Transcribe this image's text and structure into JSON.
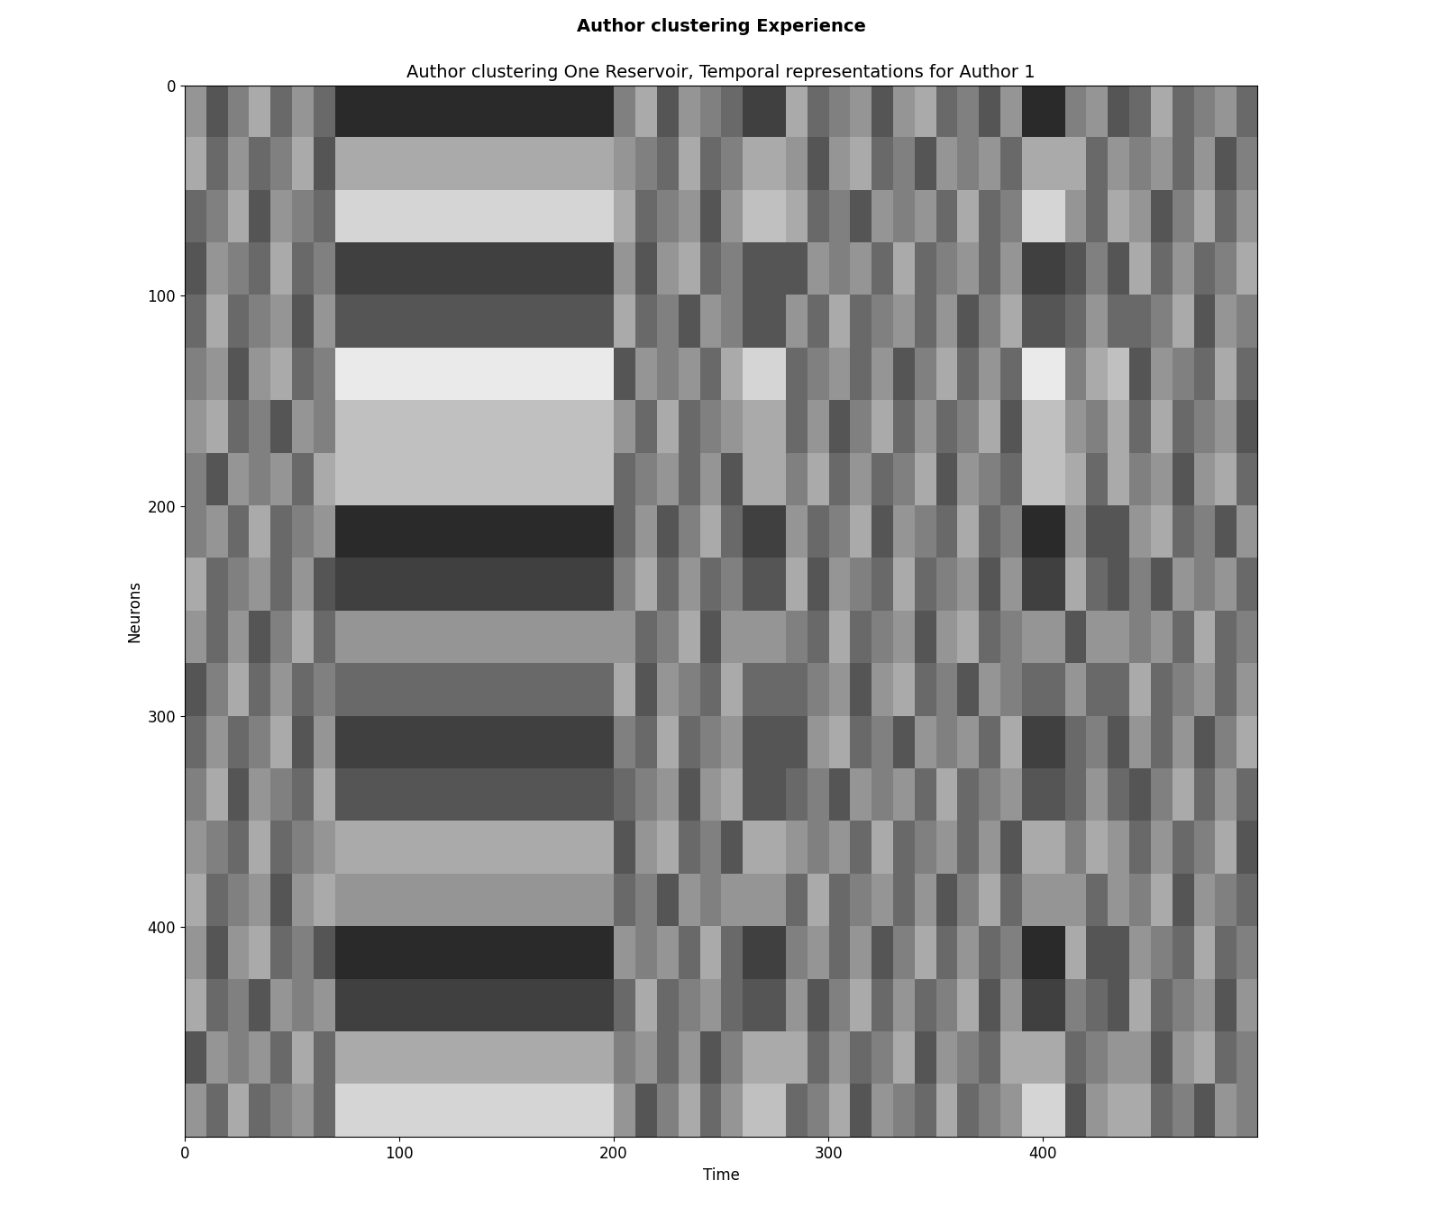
{
  "chart_data": {
    "type": "heatmap",
    "title": "Author clustering Experience",
    "subtitle": "Author clustering One Reservoir, Temporal representations for Author 1",
    "x_label": "Time",
    "y_label": "Neurons",
    "xlim": [
      0,
      500
    ],
    "ylim": [
      500,
      0
    ],
    "xticks": [
      0,
      100,
      200,
      300,
      400
    ],
    "yticks": [
      0,
      100,
      200,
      300,
      400
    ],
    "color": "gray",
    "cell_range": [
      -0.6,
      0.6
    ],
    "cells": [
      [
        0.1,
        -0.2,
        0.0,
        0.2,
        -0.1,
        0.1,
        -0.1,
        -0.4,
        -0.4,
        -0.4,
        -0.4,
        -0.4,
        -0.4,
        -0.4,
        -0.4,
        -0.4,
        -0.4,
        -0.4,
        -0.4,
        -0.4,
        0.0,
        0.2,
        -0.2,
        0.1,
        0.0,
        -0.1,
        -0.3,
        -0.3,
        0.2,
        -0.1,
        0.0,
        0.1,
        -0.2,
        0.1,
        0.2,
        -0.1,
        0.0,
        -0.2,
        0.1,
        -0.4,
        -0.4,
        0.0,
        0.1,
        -0.2,
        -0.1,
        0.2,
        -0.1,
        0.0,
        0.1,
        -0.1
      ],
      [
        0.2,
        -0.1,
        0.1,
        -0.1,
        0.0,
        0.2,
        -0.2,
        0.2,
        0.2,
        0.2,
        0.2,
        0.2,
        0.2,
        0.2,
        0.2,
        0.2,
        0.2,
        0.2,
        0.2,
        0.2,
        0.1,
        0.0,
        -0.1,
        0.2,
        -0.1,
        0.0,
        0.2,
        0.2,
        0.1,
        -0.2,
        0.1,
        0.2,
        -0.1,
        0.0,
        -0.2,
        0.1,
        0.0,
        0.1,
        -0.1,
        0.2,
        0.2,
        0.2,
        -0.1,
        0.1,
        0.0,
        0.1,
        -0.1,
        0.1,
        -0.2,
        0.0
      ],
      [
        -0.1,
        0.0,
        0.2,
        -0.2,
        0.1,
        0.0,
        -0.1,
        0.4,
        0.4,
        0.4,
        0.4,
        0.4,
        0.4,
        0.4,
        0.4,
        0.4,
        0.4,
        0.4,
        0.4,
        0.4,
        0.2,
        -0.1,
        0.0,
        0.1,
        -0.2,
        0.1,
        0.3,
        0.3,
        0.2,
        -0.1,
        0.0,
        -0.2,
        0.1,
        0.0,
        0.1,
        -0.1,
        0.2,
        -0.1,
        0.0,
        0.4,
        0.4,
        0.1,
        -0.1,
        0.2,
        0.1,
        -0.2,
        0.0,
        0.2,
        -0.1,
        0.1
      ],
      [
        -0.2,
        0.1,
        0.0,
        -0.1,
        0.2,
        -0.1,
        0.0,
        -0.3,
        -0.3,
        -0.3,
        -0.3,
        -0.3,
        -0.3,
        -0.3,
        -0.3,
        -0.3,
        -0.3,
        -0.3,
        -0.3,
        -0.3,
        0.1,
        -0.2,
        0.1,
        0.2,
        -0.1,
        0.0,
        -0.2,
        -0.2,
        -0.2,
        0.1,
        0.0,
        0.1,
        -0.1,
        0.2,
        -0.1,
        0.0,
        0.1,
        -0.1,
        0.1,
        -0.3,
        -0.3,
        -0.2,
        0.0,
        -0.2,
        0.2,
        -0.1,
        0.1,
        -0.1,
        0.0,
        0.2
      ],
      [
        -0.1,
        0.2,
        -0.1,
        0.0,
        0.1,
        -0.2,
        0.1,
        -0.2,
        -0.2,
        -0.2,
        -0.2,
        -0.2,
        -0.2,
        -0.2,
        -0.2,
        -0.2,
        -0.2,
        -0.2,
        -0.2,
        -0.2,
        0.2,
        -0.1,
        0.0,
        -0.2,
        0.1,
        0.0,
        -0.2,
        -0.2,
        0.1,
        -0.1,
        0.2,
        -0.1,
        0.0,
        0.1,
        -0.1,
        0.1,
        -0.2,
        0.0,
        0.2,
        -0.2,
        -0.2,
        -0.1,
        0.1,
        -0.1,
        -0.1,
        0.0,
        0.2,
        -0.2,
        0.1,
        0.0
      ],
      [
        0.0,
        0.1,
        -0.2,
        0.1,
        0.2,
        -0.1,
        0.0,
        0.5,
        0.5,
        0.5,
        0.5,
        0.5,
        0.5,
        0.5,
        0.5,
        0.5,
        0.5,
        0.5,
        0.5,
        0.5,
        -0.2,
        0.1,
        0.0,
        0.1,
        -0.1,
        0.2,
        0.4,
        0.4,
        -0.1,
        0.0,
        0.1,
        -0.1,
        0.1,
        -0.2,
        0.0,
        0.2,
        -0.1,
        0.1,
        -0.1,
        0.5,
        0.5,
        0.0,
        0.2,
        0.3,
        -0.2,
        0.1,
        0.0,
        -0.1,
        0.2,
        -0.1
      ],
      [
        0.1,
        0.2,
        -0.1,
        0.0,
        -0.2,
        0.1,
        0.0,
        0.3,
        0.3,
        0.3,
        0.3,
        0.3,
        0.3,
        0.3,
        0.3,
        0.3,
        0.3,
        0.3,
        0.3,
        0.3,
        0.1,
        -0.1,
        0.2,
        -0.1,
        0.0,
        0.1,
        0.2,
        0.2,
        -0.1,
        0.1,
        -0.2,
        0.0,
        0.2,
        -0.1,
        0.1,
        -0.1,
        0.0,
        0.2,
        -0.2,
        0.3,
        0.3,
        0.1,
        0.0,
        0.2,
        -0.1,
        0.2,
        -0.1,
        0.0,
        0.1,
        -0.2
      ],
      [
        0.0,
        -0.2,
        0.1,
        0.0,
        0.1,
        -0.1,
        0.2,
        0.3,
        0.3,
        0.3,
        0.3,
        0.3,
        0.3,
        0.3,
        0.3,
        0.3,
        0.3,
        0.3,
        0.3,
        0.3,
        -0.1,
        0.0,
        0.1,
        -0.1,
        0.1,
        -0.2,
        0.2,
        0.2,
        0.0,
        0.2,
        -0.1,
        0.1,
        -0.1,
        0.0,
        0.2,
        -0.2,
        0.1,
        0.0,
        -0.1,
        0.3,
        0.3,
        0.2,
        -0.1,
        0.2,
        0.0,
        0.1,
        -0.2,
        0.1,
        0.2,
        -0.1
      ],
      [
        0.0,
        0.1,
        -0.1,
        0.2,
        -0.1,
        0.0,
        0.1,
        -0.4,
        -0.4,
        -0.4,
        -0.4,
        -0.4,
        -0.4,
        -0.4,
        -0.4,
        -0.4,
        -0.4,
        -0.4,
        -0.4,
        -0.4,
        -0.1,
        0.1,
        -0.2,
        0.0,
        0.2,
        -0.1,
        -0.3,
        -0.3,
        0.1,
        -0.1,
        0.0,
        0.2,
        -0.2,
        0.1,
        0.0,
        -0.1,
        0.2,
        -0.1,
        0.0,
        -0.4,
        -0.4,
        0.1,
        -0.2,
        -0.2,
        0.1,
        0.2,
        -0.1,
        0.0,
        -0.2,
        0.1
      ],
      [
        0.2,
        -0.1,
        0.0,
        0.1,
        -0.1,
        0.1,
        -0.2,
        -0.3,
        -0.3,
        -0.3,
        -0.3,
        -0.3,
        -0.3,
        -0.3,
        -0.3,
        -0.3,
        -0.3,
        -0.3,
        -0.3,
        -0.3,
        0.0,
        0.2,
        -0.1,
        0.1,
        -0.1,
        0.0,
        -0.2,
        -0.2,
        0.2,
        -0.2,
        0.1,
        0.0,
        -0.1,
        0.2,
        -0.1,
        0.0,
        0.1,
        -0.2,
        0.1,
        -0.3,
        -0.3,
        0.2,
        -0.1,
        -0.2,
        0.0,
        -0.2,
        0.1,
        0.0,
        0.1,
        -0.1
      ],
      [
        0.1,
        -0.1,
        0.1,
        -0.2,
        0.0,
        0.2,
        -0.1,
        0.1,
        0.1,
        0.1,
        0.1,
        0.1,
        0.1,
        0.1,
        0.1,
        0.1,
        0.1,
        0.1,
        0.1,
        0.1,
        0.1,
        -0.1,
        0.0,
        0.2,
        -0.2,
        0.1,
        0.1,
        0.1,
        0.0,
        -0.1,
        0.2,
        -0.1,
        0.0,
        0.1,
        -0.2,
        0.1,
        0.2,
        -0.1,
        0.0,
        0.1,
        0.1,
        -0.2,
        0.1,
        0.1,
        0.0,
        0.1,
        -0.1,
        0.2,
        -0.1,
        0.0
      ],
      [
        -0.2,
        0.0,
        0.2,
        -0.1,
        0.1,
        -0.1,
        0.0,
        -0.1,
        -0.1,
        -0.1,
        -0.1,
        -0.1,
        -0.1,
        -0.1,
        -0.1,
        -0.1,
        -0.1,
        -0.1,
        -0.1,
        -0.1,
        0.2,
        -0.2,
        0.1,
        0.0,
        -0.1,
        0.2,
        -0.1,
        -0.1,
        -0.1,
        0.0,
        0.1,
        -0.2,
        0.1,
        0.2,
        -0.1,
        0.0,
        -0.2,
        0.1,
        0.0,
        -0.1,
        -0.1,
        0.1,
        -0.1,
        -0.1,
        0.2,
        -0.1,
        0.0,
        0.1,
        -0.1,
        0.1
      ],
      [
        -0.1,
        0.1,
        -0.1,
        0.0,
        0.2,
        -0.2,
        0.1,
        -0.3,
        -0.3,
        -0.3,
        -0.3,
        -0.3,
        -0.3,
        -0.3,
        -0.3,
        -0.3,
        -0.3,
        -0.3,
        -0.3,
        -0.3,
        0.0,
        -0.1,
        0.2,
        -0.1,
        0.0,
        0.1,
        -0.2,
        -0.2,
        -0.2,
        0.1,
        0.2,
        -0.1,
        0.0,
        -0.2,
        0.1,
        0.0,
        0.1,
        -0.1,
        0.2,
        -0.3,
        -0.3,
        -0.1,
        0.0,
        -0.2,
        0.1,
        -0.1,
        0.1,
        -0.2,
        0.0,
        0.2
      ],
      [
        0.0,
        0.2,
        -0.2,
        0.1,
        0.0,
        -0.1,
        0.2,
        -0.2,
        -0.2,
        -0.2,
        -0.2,
        -0.2,
        -0.2,
        -0.2,
        -0.2,
        -0.2,
        -0.2,
        -0.2,
        -0.2,
        -0.2,
        -0.1,
        0.0,
        0.1,
        -0.2,
        0.1,
        0.2,
        -0.2,
        -0.2,
        -0.1,
        0.0,
        -0.2,
        0.1,
        0.0,
        0.1,
        -0.1,
        0.2,
        -0.1,
        0.0,
        0.1,
        -0.2,
        -0.2,
        -0.1,
        0.1,
        -0.1,
        -0.2,
        0.0,
        0.2,
        -0.1,
        0.1,
        -0.1
      ],
      [
        0.1,
        0.0,
        -0.1,
        0.2,
        -0.1,
        0.0,
        0.1,
        0.2,
        0.2,
        0.2,
        0.2,
        0.2,
        0.2,
        0.2,
        0.2,
        0.2,
        0.2,
        0.2,
        0.2,
        0.2,
        -0.2,
        0.1,
        0.2,
        -0.1,
        0.0,
        -0.2,
        0.2,
        0.2,
        0.1,
        0.0,
        0.1,
        -0.1,
        0.2,
        -0.1,
        0.0,
        0.1,
        -0.1,
        0.1,
        -0.2,
        0.2,
        0.2,
        0.0,
        0.2,
        0.1,
        -0.1,
        0.1,
        -0.1,
        0.0,
        0.2,
        -0.2
      ],
      [
        0.2,
        -0.1,
        0.0,
        0.1,
        -0.2,
        0.1,
        0.2,
        0.1,
        0.1,
        0.1,
        0.1,
        0.1,
        0.1,
        0.1,
        0.1,
        0.1,
        0.1,
        0.1,
        0.1,
        0.1,
        -0.1,
        0.0,
        -0.2,
        0.1,
        0.0,
        0.1,
        0.1,
        0.1,
        -0.1,
        0.2,
        -0.1,
        0.0,
        0.1,
        -0.1,
        0.1,
        -0.2,
        0.0,
        0.2,
        -0.1,
        0.1,
        0.1,
        0.1,
        -0.1,
        0.1,
        0.0,
        0.2,
        -0.2,
        0.1,
        0.0,
        -0.1
      ],
      [
        0.1,
        -0.2,
        0.1,
        0.2,
        -0.1,
        0.0,
        -0.2,
        -0.4,
        -0.4,
        -0.4,
        -0.4,
        -0.4,
        -0.4,
        -0.4,
        -0.4,
        -0.4,
        -0.4,
        -0.4,
        -0.4,
        -0.4,
        0.1,
        0.0,
        0.1,
        -0.1,
        0.2,
        -0.1,
        -0.3,
        -0.3,
        0.0,
        0.1,
        -0.1,
        0.1,
        -0.2,
        0.0,
        0.2,
        -0.1,
        0.1,
        -0.1,
        0.0,
        -0.4,
        -0.4,
        0.2,
        -0.2,
        -0.2,
        0.1,
        0.0,
        -0.1,
        0.2,
        -0.1,
        0.0
      ],
      [
        0.2,
        -0.1,
        0.0,
        -0.2,
        0.1,
        0.0,
        0.1,
        -0.3,
        -0.3,
        -0.3,
        -0.3,
        -0.3,
        -0.3,
        -0.3,
        -0.3,
        -0.3,
        -0.3,
        -0.3,
        -0.3,
        -0.3,
        -0.1,
        0.2,
        -0.1,
        0.0,
        0.1,
        -0.1,
        -0.2,
        -0.2,
        0.1,
        -0.2,
        0.0,
        0.2,
        -0.1,
        0.1,
        -0.1,
        0.0,
        0.2,
        -0.2,
        0.1,
        -0.3,
        -0.3,
        0.0,
        -0.1,
        -0.2,
        0.2,
        -0.1,
        0.0,
        0.1,
        -0.2,
        0.1
      ],
      [
        -0.2,
        0.1,
        0.0,
        0.1,
        -0.1,
        0.2,
        -0.1,
        0.2,
        0.2,
        0.2,
        0.2,
        0.2,
        0.2,
        0.2,
        0.2,
        0.2,
        0.2,
        0.2,
        0.2,
        0.2,
        0.0,
        0.1,
        -0.1,
        0.1,
        -0.2,
        0.0,
        0.2,
        0.2,
        0.2,
        -0.1,
        0.1,
        -0.1,
        0.0,
        0.2,
        -0.2,
        0.1,
        0.0,
        -0.1,
        0.2,
        0.2,
        0.2,
        -0.1,
        0.0,
        0.1,
        0.1,
        -0.2,
        0.1,
        0.2,
        -0.1,
        0.0
      ],
      [
        0.1,
        -0.1,
        0.2,
        -0.1,
        0.0,
        0.1,
        -0.1,
        0.4,
        0.4,
        0.4,
        0.4,
        0.4,
        0.4,
        0.4,
        0.4,
        0.4,
        0.4,
        0.4,
        0.4,
        0.4,
        0.1,
        -0.2,
        0.0,
        0.2,
        -0.1,
        0.1,
        0.3,
        0.3,
        -0.1,
        0.0,
        0.2,
        -0.2,
        0.1,
        0.0,
        -0.1,
        0.2,
        -0.1,
        0.0,
        0.1,
        0.4,
        0.4,
        -0.2,
        0.1,
        0.2,
        0.2,
        -0.1,
        0.0,
        -0.2,
        0.1,
        0.0
      ]
    ]
  }
}
